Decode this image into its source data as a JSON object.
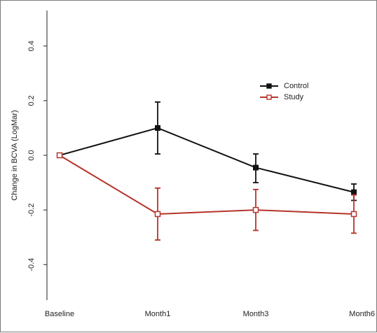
{
  "chart_data": {
    "type": "line",
    "title": "",
    "xlabel": "",
    "ylabel": "Change in BCVA (LogMar)",
    "categories": [
      "Baseline",
      "Month1",
      "Month3",
      "Month6"
    ],
    "ylim": [
      -0.53,
      0.53
    ],
    "yticks": [
      -0.4,
      -0.2,
      0.0,
      0.2,
      0.4
    ],
    "ytick_labels": [
      "-0.4",
      "-0.2",
      "0.0",
      "0.2",
      "0.4"
    ],
    "grid": false,
    "legend_position": "top-right",
    "series": [
      {
        "name": "Control",
        "color": "#111111",
        "marker": "filled-square",
        "values": [
          0.0,
          0.1,
          -0.045,
          -0.135
        ],
        "error_low": [
          0.0,
          0.005,
          -0.1,
          -0.165
        ],
        "error_high": [
          0.0,
          0.195,
          0.005,
          -0.105
        ]
      },
      {
        "name": "Study",
        "color": "#b5332b",
        "marker": "open-square",
        "values": [
          0.0,
          -0.215,
          -0.2,
          -0.215
        ],
        "error_low": [
          0.0,
          -0.31,
          -0.275,
          -0.285
        ],
        "error_high": [
          0.0,
          -0.12,
          -0.125,
          -0.145
        ]
      }
    ]
  }
}
